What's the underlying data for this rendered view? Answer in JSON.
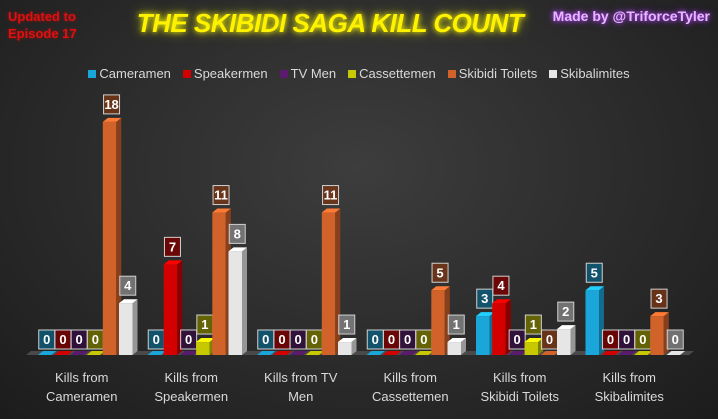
{
  "header": {
    "stamp_line1": "Updated to",
    "stamp_line2": "Episode 17",
    "title": "THE SKIBIDI SAGA KILL COUNT",
    "credit": "Made by @TriforceTyler"
  },
  "chart_data": {
    "type": "bar",
    "title": "THE SKIBIDI SAGA KILL COUNT",
    "categories": [
      [
        "Kills from",
        "Cameramen"
      ],
      [
        "Kills from",
        "Speakermen"
      ],
      [
        "Kills from TV",
        "Men"
      ],
      [
        "Kills from",
        "Cassettemen"
      ],
      [
        "Kills from",
        "Skibidi Toilets"
      ],
      [
        "Kills from",
        "Skibalimites"
      ]
    ],
    "series": [
      {
        "name": "Cameramen",
        "color": "#1aa6d9",
        "values": [
          0,
          0,
          0,
          0,
          3,
          5
        ]
      },
      {
        "name": "Speakermen",
        "color": "#d40000",
        "values": [
          0,
          7,
          0,
          0,
          4,
          0
        ]
      },
      {
        "name": "TV Men",
        "color": "#5a1a6e",
        "values": [
          0,
          0,
          0,
          0,
          0,
          0
        ]
      },
      {
        "name": "Cassettemen",
        "color": "#c8c800",
        "values": [
          0,
          1,
          0,
          0,
          1,
          0
        ]
      },
      {
        "name": "Skibidi Toilets",
        "color": "#d0622a",
        "values": [
          18,
          11,
          11,
          5,
          0,
          3
        ]
      },
      {
        "name": "Skibalimites",
        "color": "#e6e6e6",
        "values": [
          4,
          8,
          1,
          1,
          2,
          0
        ]
      }
    ],
    "ylim": [
      0,
      20
    ],
    "legend_position": "top",
    "grid": false
  }
}
